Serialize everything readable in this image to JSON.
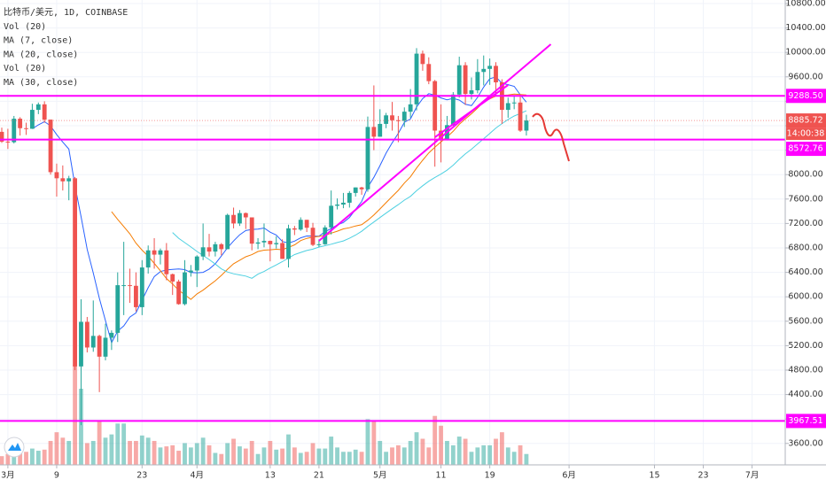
{
  "chart_data": {
    "type": "candlestick",
    "title": "比特币/美元, 1D, COINBASE",
    "legend": [
      {
        "text": "Vol (20)"
      },
      {
        "text": "MA (7, close)",
        "period": 7,
        "color": "#2962ff"
      },
      {
        "text": "MA (20, close)",
        "period": 20,
        "color": "#f57c00"
      },
      {
        "text": "Vol (20)"
      },
      {
        "text": "MA (30, close)",
        "period": 30,
        "color": "#4dd0e1"
      }
    ],
    "up_color": "#26a69a",
    "down_color": "#ef5350",
    "x": [
      "02-28",
      "02-29",
      "03-01",
      "03-02",
      "03-03",
      "03-04",
      "03-05",
      "03-06",
      "03-07",
      "03-08",
      "03-09",
      "03-10",
      "03-11",
      "03-12",
      "03-13",
      "03-14",
      "03-15",
      "03-16",
      "03-17",
      "03-18",
      "03-19",
      "03-20",
      "03-21",
      "03-22",
      "03-23",
      "03-24",
      "03-25",
      "03-26",
      "03-27",
      "03-28",
      "03-29",
      "03-30",
      "03-31",
      "04-01",
      "04-02",
      "04-03",
      "04-04",
      "04-05",
      "04-06",
      "04-07",
      "04-08",
      "04-09",
      "04-10",
      "04-11",
      "04-12",
      "04-13",
      "04-14",
      "04-15",
      "04-16",
      "04-17",
      "04-18",
      "04-19",
      "04-20",
      "04-21",
      "04-22",
      "04-23",
      "04-24",
      "04-25",
      "04-26",
      "04-27",
      "04-28",
      "04-29",
      "04-30",
      "05-01",
      "05-02",
      "05-03",
      "05-04",
      "05-05",
      "05-06",
      "05-07",
      "05-08",
      "05-09",
      "05-10",
      "05-11",
      "05-12",
      "05-13",
      "05-14",
      "05-15",
      "05-16",
      "05-17",
      "05-18",
      "05-19",
      "05-20",
      "05-21",
      "05-22",
      "05-23",
      "05-24",
      "05-25"
    ],
    "open": [
      8790,
      8700,
      8540,
      8530,
      8915,
      8760,
      8750,
      9060,
      9150,
      8900,
      8040,
      7940,
      7890,
      7940,
      4860,
      5590,
      5170,
      5360,
      5020,
      5330,
      5410,
      6190,
      6190,
      6180,
      5830,
      6480,
      6760,
      6690,
      6760,
      6370,
      6250,
      5880,
      6400,
      6430,
      6660,
      6810,
      6740,
      6860,
      6780,
      7340,
      7200,
      7370,
      7300,
      6870,
      6890,
      6915,
      6860,
      6880,
      6620,
      7120,
      7100,
      7260,
      7130,
      6850,
      6860,
      7135,
      7490,
      7510,
      7540,
      7700,
      7790,
      7760,
      8780,
      8620,
      8830,
      8970,
      8890,
      8880,
      9030,
      9150,
      9980,
      9810,
      9530,
      8720,
      8570,
      8810,
      9310,
      9790,
      9320,
      9380,
      9680,
      9730,
      9780,
      9510,
      9060,
      9170,
      9180,
      8720
    ],
    "high": [
      8900,
      8770,
      8750,
      8960,
      8940,
      8850,
      9160,
      9180,
      9200,
      8900,
      8180,
      8150,
      7980,
      7960,
      5960,
      5670,
      5940,
      5380,
      5560,
      5450,
      6400,
      6900,
      6460,
      6400,
      6600,
      6840,
      6960,
      6790,
      6880,
      6380,
      6280,
      6600,
      6520,
      6680,
      7200,
      7030,
      6900,
      6880,
      7360,
      7460,
      7420,
      7380,
      7300,
      6960,
      7200,
      6920,
      6990,
      6940,
      7180,
      7160,
      7300,
      7260,
      7210,
      6940,
      7170,
      7740,
      7610,
      7700,
      7730,
      7790,
      7800,
      8950,
      9460,
      9070,
      9010,
      9190,
      8960,
      9100,
      9400,
      10070,
      10030,
      9920,
      9550,
      9150,
      8960,
      9350,
      9930,
      9840,
      9590,
      9890,
      9950,
      9900,
      9840,
      9560,
      9260,
      9300,
      9310,
      8980
    ],
    "low": [
      8460,
      8520,
      8420,
      8510,
      8640,
      8650,
      8750,
      8990,
      8850,
      8000,
      7640,
      7740,
      7580,
      4800,
      3900,
      5090,
      5100,
      4440,
      4960,
      5130,
      5260,
      5700,
      5900,
      5760,
      5700,
      6380,
      6460,
      6530,
      6270,
      6030,
      5870,
      5860,
      6330,
      6160,
      6600,
      6660,
      6660,
      6680,
      6780,
      7120,
      7160,
      7110,
      6760,
      6780,
      6810,
      6580,
      6790,
      6620,
      6480,
      7010,
      7080,
      7060,
      6830,
      6810,
      6850,
      7020,
      7430,
      7450,
      7460,
      7640,
      7670,
      7720,
      8400,
      8620,
      8760,
      8720,
      8530,
      8780,
      8930,
      9050,
      9700,
      9480,
      8130,
      8200,
      8560,
      8800,
      9260,
      9140,
      9230,
      9330,
      9460,
      9470,
      9290,
      8830,
      8930,
      9070,
      8700,
      8640
    ],
    "close": [
      8700,
      8540,
      8530,
      8915,
      8760,
      8750,
      9060,
      9150,
      8900,
      8040,
      7940,
      7890,
      7940,
      4860,
      5590,
      5170,
      5360,
      5020,
      5330,
      5410,
      6190,
      6190,
      6180,
      5830,
      6480,
      6760,
      6690,
      6760,
      6370,
      6250,
      5880,
      6400,
      6430,
      6660,
      6810,
      6740,
      6860,
      6780,
      7340,
      7200,
      7370,
      7300,
      6870,
      6890,
      6915,
      6860,
      6880,
      6620,
      7120,
      7100,
      7260,
      7130,
      6850,
      6860,
      7135,
      7490,
      7510,
      7540,
      7700,
      7790,
      7760,
      8780,
      8620,
      8830,
      8970,
      8890,
      8880,
      9030,
      9150,
      9980,
      9810,
      9530,
      8720,
      8570,
      8810,
      9310,
      9790,
      9320,
      9380,
      9680,
      9730,
      9780,
      9510,
      9060,
      9170,
      9180,
      8720,
      8885.72
    ],
    "volume": [
      20000,
      8000,
      10000,
      14000,
      16000,
      12000,
      15000,
      13000,
      14000,
      22000,
      30000,
      25000,
      22000,
      92000,
      70000,
      20000,
      22000,
      40000,
      25000,
      28000,
      38000,
      38000,
      22000,
      22000,
      27000,
      25000,
      22000,
      16000,
      17000,
      18000,
      13000,
      20000,
      16000,
      20000,
      25000,
      18000,
      11000,
      10000,
      20000,
      24000,
      17000,
      15000,
      22000,
      10000,
      16000,
      22000,
      14000,
      15000,
      28000,
      16000,
      11000,
      12000,
      20000,
      15000,
      15000,
      26000,
      16000,
      12000,
      12000,
      14000,
      12000,
      42000,
      40000,
      22000,
      12000,
      16000,
      18000,
      16000,
      22000,
      30000,
      24000,
      16000,
      45000,
      36000,
      22000,
      18000,
      26000,
      24000,
      12000,
      16000,
      18000,
      18000,
      24000,
      30000,
      16000,
      12000,
      18000,
      10000
    ],
    "xlim": [
      "02-29",
      "07-06"
    ],
    "xticks": [
      {
        "value": "03-01",
        "label": "3月"
      },
      {
        "value": "03-09",
        "label": "9"
      },
      {
        "value": "03-23",
        "label": "23"
      },
      {
        "value": "04-01",
        "label": "4月"
      },
      {
        "value": "04-13",
        "label": "13"
      },
      {
        "value": "04-21",
        "label": "21"
      },
      {
        "value": "05-01",
        "label": "5月"
      },
      {
        "value": "05-11",
        "label": "11"
      },
      {
        "value": "05-19",
        "label": "19"
      },
      {
        "value": "06-01",
        "label": "6月"
      },
      {
        "value": "06-15",
        "label": "15"
      },
      {
        "value": "06-23",
        "label": "23"
      },
      {
        "value": "07-01",
        "label": "7月"
      }
    ],
    "ylim": [
      3249,
      10858
    ],
    "yticks": [
      {
        "value": 10800,
        "label": "10800.00"
      },
      {
        "value": 10400,
        "label": "10400.00"
      },
      {
        "value": 10000,
        "label": "10000.00"
      },
      {
        "value": 9600,
        "label": "9600.00"
      },
      9200,
      8800,
      8400,
      {
        "value": 8000,
        "label": "8000.00"
      },
      {
        "value": 7600,
        "label": "7600.00"
      },
      {
        "value": 7200,
        "label": "7200.00"
      },
      {
        "value": 6800,
        "label": "6800.00"
      },
      {
        "value": 6400,
        "label": "6400.00"
      },
      {
        "value": 6000,
        "label": "6000.00"
      },
      {
        "value": 5600,
        "label": "5600.00"
      },
      {
        "value": 5200,
        "label": "5200.00"
      },
      {
        "value": 4800,
        "label": "4800.00"
      },
      {
        "value": 4400,
        "label": "4400.00"
      },
      4000,
      {
        "value": 3600,
        "label": "3600.00"
      }
    ],
    "grid": true,
    "levels": [
      {
        "value": 9288.5,
        "label": "9288.50",
        "color": "#ff00ff"
      },
      {
        "value": 8572.76,
        "label": "8572.76",
        "color": "#ff00ff"
      },
      {
        "value": 3967.51,
        "label": "3967.51",
        "color": "#ff00ff"
      }
    ],
    "last_price": {
      "value": 8885.72,
      "label": "8885.72",
      "countdown": "14:00:38",
      "color": "#ef5350"
    },
    "trendlines": [
      {
        "x": [
          "04-21",
          "05-29"
        ],
        "y": [
          6916,
          10133
        ],
        "color": "#ff00ff"
      },
      {
        "x": [
          "05-10",
          "05-22"
        ],
        "y": [
          8612,
          9467
        ],
        "color": "#ff00ff"
      }
    ]
  }
}
